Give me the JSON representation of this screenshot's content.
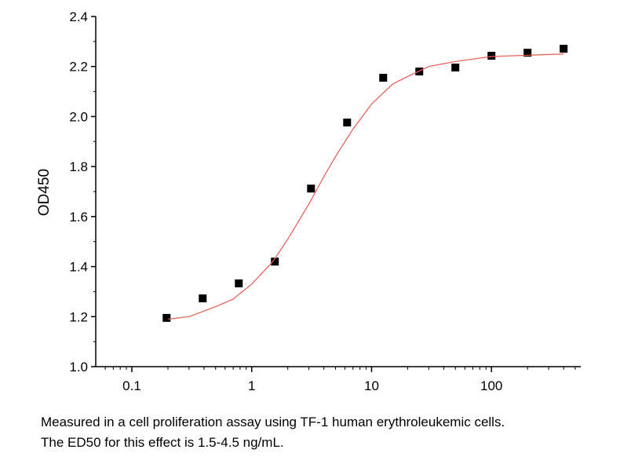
{
  "chart_data": {
    "type": "scatter",
    "y_label": "OD450",
    "x_log": true,
    "xlim": [
      0.05,
      556
    ],
    "ylim": [
      1.0,
      2.4
    ],
    "xticks": [
      0.1,
      1,
      10,
      100
    ],
    "yticks": [
      {
        "value": 1.0,
        "label": "1.0"
      },
      1.2,
      1.4,
      1.6,
      1.8,
      {
        "value": 2.0,
        "label": "2.0"
      },
      2.2,
      2.4
    ],
    "series": [
      {
        "kind": "points",
        "color": "#000000",
        "x": [
          0.195,
          0.39,
          0.78,
          1.56,
          3.125,
          6.25,
          12.5,
          25,
          50,
          100,
          200,
          400
        ],
        "values": [
          1.195,
          1.273,
          1.333,
          1.42,
          1.712,
          1.976,
          2.155,
          2.18,
          2.196,
          2.243,
          2.255,
          2.271
        ]
      },
      {
        "kind": "line",
        "color": "#e8594f",
        "x": [
          0.2,
          0.3,
          0.5,
          0.7,
          1,
          1.5,
          2,
          3,
          4,
          5,
          7,
          10,
          15,
          20,
          30,
          50,
          100,
          200,
          400
        ],
        "values": [
          1.19,
          1.2,
          1.24,
          1.27,
          1.33,
          1.42,
          1.51,
          1.65,
          1.76,
          1.84,
          1.95,
          2.05,
          2.13,
          2.16,
          2.2,
          2.22,
          2.24,
          2.245,
          2.25
        ]
      }
    ]
  },
  "caption": [
    "Measured in a cell proliferation assay using TF-1 human erythroleukemic cells.",
    "The ED50 for this effect is 1.5-4.5 ng/mL."
  ]
}
